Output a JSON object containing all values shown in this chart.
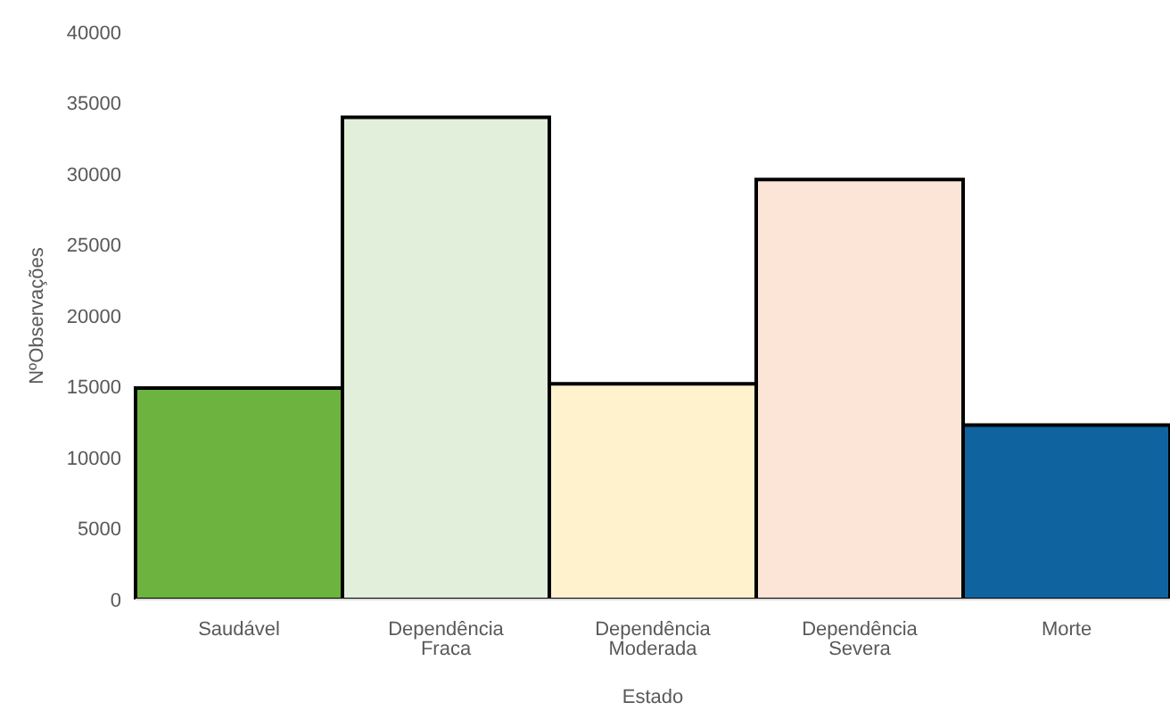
{
  "chart_data": {
    "type": "bar",
    "xlabel": "Estado",
    "ylabel": "NºObservações",
    "categories": [
      "Saudável",
      "Dependência Fraca",
      "Dependência Moderada",
      "Dependência Severa",
      "Morte"
    ],
    "values": [
      14900,
      34000,
      15200,
      29600,
      12300
    ],
    "colors": [
      "#6db33f",
      "#e2efda",
      "#fff2cc",
      "#fce4d6",
      "#0f64a0"
    ],
    "ylim": [
      0,
      40000
    ],
    "yticks": [
      0,
      5000,
      10000,
      15000,
      20000,
      25000,
      30000,
      35000,
      40000
    ],
    "grid": false
  }
}
